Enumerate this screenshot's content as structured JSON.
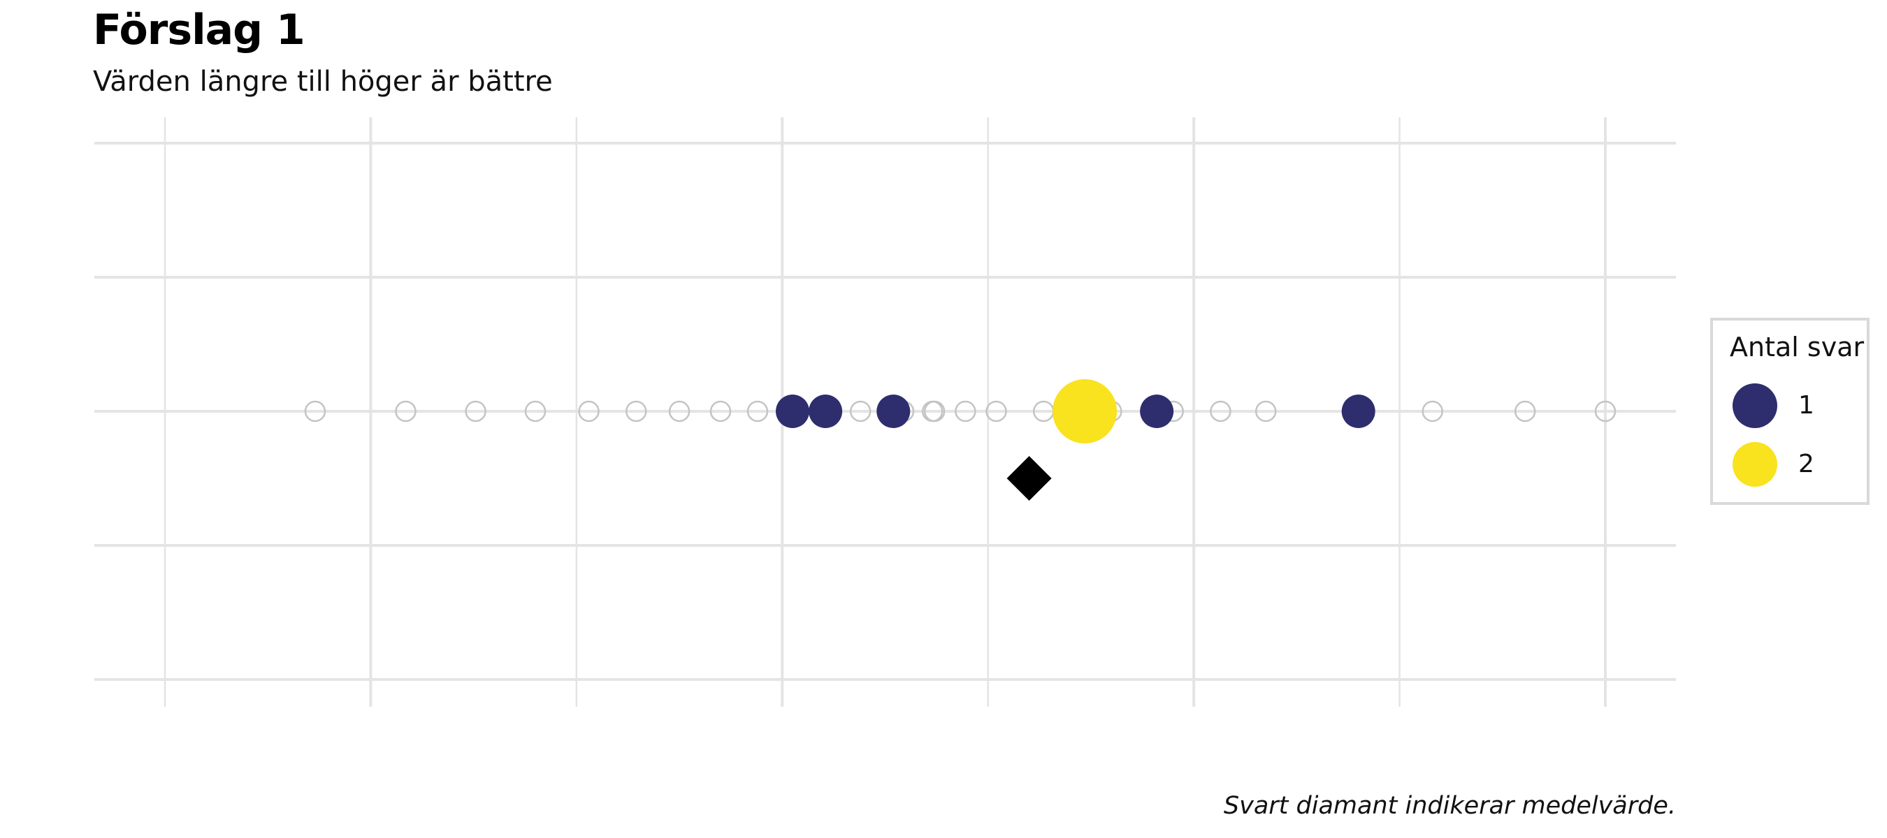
{
  "title": "Förslag 1",
  "subtitle": "Värden längre till höger är bättre",
  "caption": "Svart diamant indikerar medelvärde.",
  "colors": {
    "one": "#2e2d6e",
    "two": "#f9e21e",
    "empty_stroke": "#c4c4c4",
    "mean": "#000000",
    "grid": "#e4e4e4"
  },
  "legend": {
    "title": "Antal svar",
    "items": [
      {
        "label": "1",
        "color": "#2e2d6e"
      },
      {
        "label": "2",
        "color": "#f9e21e"
      }
    ]
  },
  "chart_data": {
    "type": "scatter",
    "title": "Förslag 1",
    "subtitle": "Värden längre till höger är bättre",
    "xlim": [
      -0.35,
      7.35
    ],
    "gridlines_x": [
      0,
      1,
      2,
      3,
      4,
      5,
      6,
      7
    ],
    "grid": true,
    "legend_position": "right",
    "possible_values": [
      0.73,
      1.17,
      1.51,
      1.8,
      2.06,
      2.29,
      2.5,
      2.7,
      2.88,
      3.21,
      3.38,
      3.59,
      3.74,
      3.89,
      4.04,
      4.42,
      4.57,
      4.9,
      5.13
    ],
    "responses": [
      {
        "x": 3.05,
        "count": 1
      },
      {
        "x": 3.21,
        "count": 1
      },
      {
        "x": 3.54,
        "count": 1
      },
      {
        "x": 4.47,
        "count": 2
      },
      {
        "x": 4.82,
        "count": 1
      },
      {
        "x": 5.8,
        "count": 1
      }
    ],
    "extra_empty_values": [
      3.73,
      4.27,
      4.6,
      5.35,
      6.16,
      6.61,
      7.0
    ],
    "mean": 4.2
  }
}
